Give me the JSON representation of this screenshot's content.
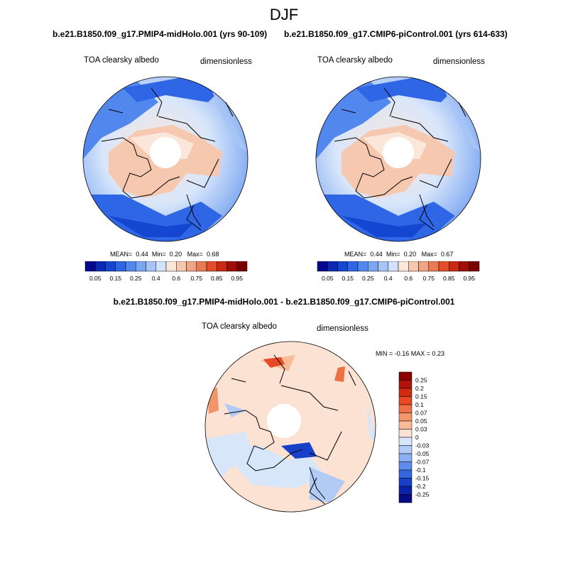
{
  "figure": {
    "season_title": "DJF"
  },
  "panel_top_left": {
    "run_title": "b.e21.B1850.f09_g17.PMIP4-midHolo.001 (yrs 90-109)",
    "variable_label": "TOA clearsky albedo",
    "units_label": "dimensionless",
    "stats": {
      "mean_label": "MEAN=",
      "mean": "0.44",
      "min_label": "Min=",
      "min": "0.20",
      "max_label": "Max=",
      "max": "0.68"
    }
  },
  "panel_top_right": {
    "run_title": "b.e21.B1850.f09_g17.CMIP6-piControl.001 (yrs 614-633)",
    "variable_label": "TOA clearsky albedo",
    "units_label": "dimensionless",
    "stats": {
      "mean_label": "MEAN=",
      "mean": "0.44",
      "min_label": "Min=",
      "min": "0.20",
      "max_label": "Max=",
      "max": "0.67"
    }
  },
  "panel_difference": {
    "title": "b.e21.B1850.f09_g17.PMIP4-midHolo.001 - b.e21.B1850.f09_g17.CMIP6-piControl.001",
    "variable_label": "TOA clearsky albedo",
    "units_label": "dimensionless",
    "range_text": "MIN =  -0.16 MAX =   0.23"
  },
  "colorbar_top": {
    "tick_labels": [
      "0.05",
      "0.15",
      "0.25",
      "0.4",
      "0.6",
      "0.75",
      "0.85",
      "0.95"
    ],
    "colors": [
      "#08088c",
      "#0a2ab4",
      "#1446d2",
      "#2e66e6",
      "#5288ee",
      "#7aa6f2",
      "#a6c4f6",
      "#d2e2fa",
      "#fbe6da",
      "#f6c8b0",
      "#f0a484",
      "#ea7a54",
      "#e24e28",
      "#cc2a10",
      "#a00e06",
      "#780000"
    ]
  },
  "colorbar_diff": {
    "tick_labels": [
      "0.25",
      "0.2",
      "0.15",
      "0.1",
      "0.07",
      "0.05",
      "0.03",
      "0",
      "-0.03",
      "-0.05",
      "-0.07",
      "-0.1",
      "-0.15",
      "-0.2",
      "-0.25"
    ],
    "colors": [
      "#8c0000",
      "#b01408",
      "#d02a10",
      "#e64a24",
      "#ee7044",
      "#f3956a",
      "#f7bb98",
      "#fbe2d2",
      "#d8e6fa",
      "#b2cbf4",
      "#8aaef0",
      "#5e8cea",
      "#3466de",
      "#1640c8",
      "#0a22a8",
      "#060a84"
    ]
  }
}
